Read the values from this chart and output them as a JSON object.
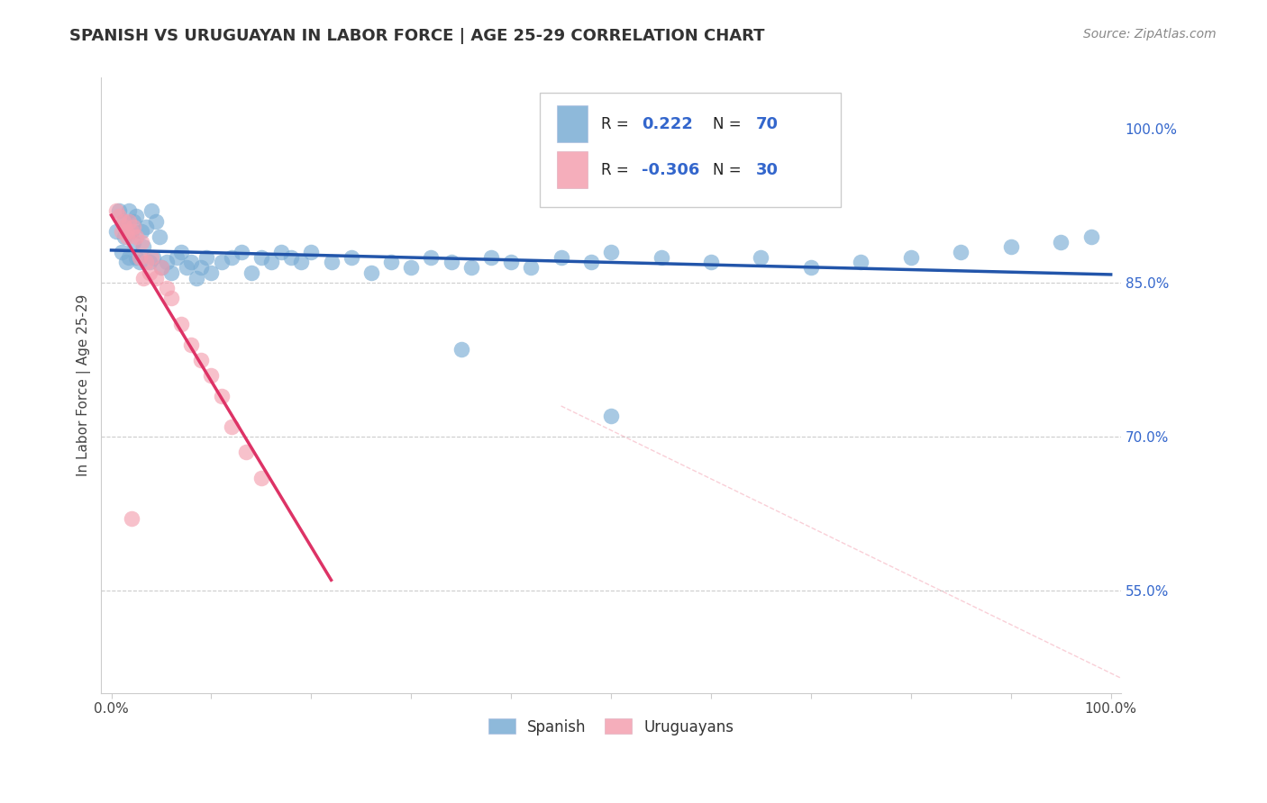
{
  "title": "SPANISH VS URUGUAYAN IN LABOR FORCE | AGE 25-29 CORRELATION CHART",
  "source": "Source: ZipAtlas.com",
  "ylabel": "In Labor Force | Age 25-29",
  "blue_color": "#7aadd4",
  "pink_color": "#f4a0b0",
  "line_blue": "#2255aa",
  "line_pink": "#dd3366",
  "diag_color": "#f4a0b0",
  "r_blue": "0.222",
  "n_blue": "70",
  "r_pink": "-0.306",
  "n_pink": "30",
  "legend_blue": "Spanish",
  "legend_pink": "Uruguayans",
  "blue_x": [
    0.005,
    0.008,
    0.01,
    0.012,
    0.013,
    0.015,
    0.015,
    0.018,
    0.018,
    0.02,
    0.022,
    0.022,
    0.025,
    0.025,
    0.028,
    0.03,
    0.032,
    0.035,
    0.038,
    0.04,
    0.042,
    0.045,
    0.048,
    0.05,
    0.055,
    0.06,
    0.065,
    0.07,
    0.075,
    0.08,
    0.085,
    0.09,
    0.095,
    0.1,
    0.11,
    0.12,
    0.13,
    0.14,
    0.15,
    0.16,
    0.17,
    0.18,
    0.19,
    0.2,
    0.22,
    0.24,
    0.26,
    0.28,
    0.3,
    0.32,
    0.34,
    0.36,
    0.38,
    0.4,
    0.42,
    0.45,
    0.48,
    0.5,
    0.55,
    0.6,
    0.65,
    0.7,
    0.75,
    0.8,
    0.85,
    0.9,
    0.95,
    0.98,
    0.5,
    0.35
  ],
  "blue_y": [
    0.9,
    0.92,
    0.88,
    0.91,
    0.895,
    0.905,
    0.87,
    0.92,
    0.875,
    0.9,
    0.91,
    0.89,
    0.875,
    0.915,
    0.87,
    0.9,
    0.885,
    0.905,
    0.87,
    0.92,
    0.875,
    0.91,
    0.895,
    0.865,
    0.87,
    0.86,
    0.875,
    0.88,
    0.865,
    0.87,
    0.855,
    0.865,
    0.875,
    0.86,
    0.87,
    0.875,
    0.88,
    0.86,
    0.875,
    0.87,
    0.88,
    0.875,
    0.87,
    0.88,
    0.87,
    0.875,
    0.86,
    0.87,
    0.865,
    0.875,
    0.87,
    0.865,
    0.875,
    0.87,
    0.865,
    0.875,
    0.87,
    0.88,
    0.875,
    0.87,
    0.875,
    0.865,
    0.87,
    0.875,
    0.88,
    0.885,
    0.89,
    0.895,
    0.72,
    0.785
  ],
  "pink_x": [
    0.005,
    0.008,
    0.01,
    0.012,
    0.013,
    0.015,
    0.016,
    0.018,
    0.02,
    0.022,
    0.025,
    0.028,
    0.03,
    0.032,
    0.035,
    0.038,
    0.04,
    0.045,
    0.05,
    0.055,
    0.06,
    0.07,
    0.08,
    0.09,
    0.1,
    0.11,
    0.12,
    0.135,
    0.15,
    0.02
  ],
  "pink_y": [
    0.92,
    0.915,
    0.9,
    0.91,
    0.905,
    0.9,
    0.895,
    0.91,
    0.9,
    0.905,
    0.895,
    0.875,
    0.89,
    0.855,
    0.87,
    0.86,
    0.875,
    0.855,
    0.865,
    0.845,
    0.835,
    0.81,
    0.79,
    0.775,
    0.76,
    0.74,
    0.71,
    0.685,
    0.66,
    0.62
  ]
}
